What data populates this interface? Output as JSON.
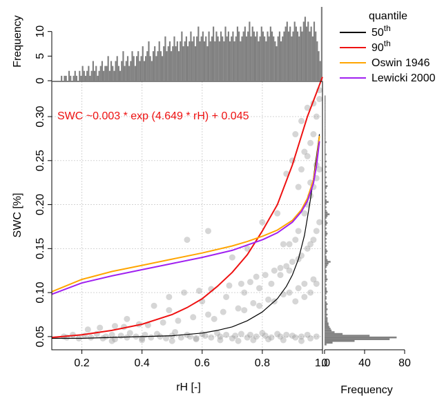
{
  "chart_data": {
    "type": "scatter",
    "xlabel": "rH [-]",
    "ylabel": "SWC [%]",
    "xlim": [
      0.1,
      1.0
    ],
    "ylim": [
      0.035,
      0.34
    ],
    "x_ticks": [
      0.2,
      0.4,
      0.6,
      0.8,
      1.0
    ],
    "x_tick_labels": [
      "0.2",
      "0.4",
      "0.6",
      "0.8",
      "1.0"
    ],
    "y_ticks": [
      0.05,
      0.1,
      0.15,
      0.2,
      0.25,
      0.3
    ],
    "y_tick_labels": [
      "0.05",
      "0.10",
      "0.15",
      "0.20",
      "0.25",
      "0.30"
    ],
    "grid": true,
    "annotation": "SWC ~0.003 * exp (4.649 * rH) + 0.045",
    "annotation_color": "#ee1111",
    "legend": {
      "title": "quantile",
      "placement": "top-right",
      "entries": [
        {
          "base": "50",
          "sup": "th",
          "color": "#000000"
        },
        {
          "base": "90",
          "sup": "th",
          "color": "#ee1111"
        },
        {
          "base": "Oswin 1946",
          "sup": "",
          "color": "#ffa500"
        },
        {
          "base": "Lewicki 2000",
          "sup": "",
          "color": "#a020f0"
        }
      ]
    },
    "series": [
      {
        "name": "50th",
        "color": "#000000",
        "x": [
          0.1,
          0.2,
          0.3,
          0.4,
          0.5,
          0.6,
          0.65,
          0.7,
          0.75,
          0.8,
          0.85,
          0.88,
          0.9,
          0.92,
          0.94,
          0.95,
          0.96,
          0.97,
          0.98,
          0.99
        ],
        "y": [
          0.048,
          0.048,
          0.049,
          0.05,
          0.051,
          0.054,
          0.057,
          0.061,
          0.068,
          0.078,
          0.093,
          0.107,
          0.12,
          0.138,
          0.165,
          0.185,
          0.206,
          0.23,
          0.255,
          0.28
        ]
      },
      {
        "name": "90th",
        "color": "#ee1111",
        "x": [
          0.1,
          0.2,
          0.3,
          0.4,
          0.5,
          0.55,
          0.6,
          0.65,
          0.7,
          0.75,
          0.8,
          0.85,
          0.9,
          0.95,
          0.98,
          1.0
        ],
        "y": [
          0.049,
          0.052,
          0.057,
          0.064,
          0.075,
          0.083,
          0.093,
          0.107,
          0.123,
          0.143,
          0.17,
          0.2,
          0.245,
          0.3,
          0.327,
          0.345
        ]
      },
      {
        "name": "Oswin 1946",
        "color": "#ffa500",
        "x": [
          0.1,
          0.2,
          0.3,
          0.4,
          0.5,
          0.6,
          0.7,
          0.75,
          0.8,
          0.85,
          0.9,
          0.93,
          0.95,
          0.97,
          0.98,
          0.99
        ],
        "y": [
          0.101,
          0.115,
          0.124,
          0.131,
          0.138,
          0.145,
          0.153,
          0.158,
          0.164,
          0.171,
          0.182,
          0.194,
          0.207,
          0.228,
          0.248,
          0.278
        ]
      },
      {
        "name": "Lewicki 2000",
        "color": "#a020f0",
        "x": [
          0.1,
          0.2,
          0.3,
          0.4,
          0.5,
          0.6,
          0.7,
          0.75,
          0.8,
          0.85,
          0.9,
          0.93,
          0.95,
          0.97,
          0.98,
          0.99
        ],
        "y": [
          0.098,
          0.111,
          0.119,
          0.126,
          0.133,
          0.14,
          0.148,
          0.154,
          0.16,
          0.168,
          0.18,
          0.192,
          0.204,
          0.224,
          0.244,
          0.272
        ]
      }
    ],
    "scatter_points": {
      "color": "#999999",
      "x": [
        0.14,
        0.15,
        0.17,
        0.19,
        0.21,
        0.23,
        0.25,
        0.27,
        0.28,
        0.3,
        0.31,
        0.33,
        0.35,
        0.36,
        0.38,
        0.4,
        0.41,
        0.43,
        0.45,
        0.46,
        0.48,
        0.5,
        0.51,
        0.53,
        0.55,
        0.56,
        0.58,
        0.6,
        0.61,
        0.63,
        0.65,
        0.66,
        0.68,
        0.7,
        0.71,
        0.73,
        0.75,
        0.76,
        0.78,
        0.8,
        0.81,
        0.83,
        0.85,
        0.86,
        0.88,
        0.9,
        0.91,
        0.93,
        0.95,
        0.96,
        0.98,
        0.22,
        0.26,
        0.31,
        0.34,
        0.39,
        0.42,
        0.47,
        0.52,
        0.57,
        0.62,
        0.64,
        0.67,
        0.72,
        0.74,
        0.77,
        0.79,
        0.82,
        0.84,
        0.87,
        0.89,
        0.92,
        0.94,
        0.97,
        0.35,
        0.44,
        0.49,
        0.54,
        0.59,
        0.63,
        0.69,
        0.73,
        0.76,
        0.78,
        0.81,
        0.84,
        0.86,
        0.88,
        0.9,
        0.92,
        0.93,
        0.95,
        0.96,
        0.97,
        0.98,
        0.99,
        0.55,
        0.62,
        0.7,
        0.75,
        0.8,
        0.85,
        0.87,
        0.89,
        0.91,
        0.92,
        0.94,
        0.95,
        0.96,
        0.97,
        0.98,
        0.99,
        0.88,
        0.9,
        0.92,
        0.93,
        0.94,
        0.95,
        0.96,
        0.97,
        0.98,
        0.99,
        0.91,
        0.93,
        0.95,
        0.97,
        0.99,
        0.96,
        0.98,
        0.49,
        0.6,
        0.68,
        0.74,
        0.79,
        0.83,
        0.86,
        0.89,
        0.91,
        0.94,
        0.96,
        0.98,
        0.3,
        0.4,
        0.5,
        0.58,
        0.66,
        0.72,
        0.77,
        0.82,
        0.87,
        0.93
      ],
      "y": [
        0.05,
        0.049,
        0.052,
        0.048,
        0.051,
        0.049,
        0.053,
        0.048,
        0.05,
        0.052,
        0.047,
        0.051,
        0.049,
        0.054,
        0.05,
        0.048,
        0.052,
        0.049,
        0.053,
        0.05,
        0.048,
        0.051,
        0.055,
        0.049,
        0.052,
        0.05,
        0.048,
        0.053,
        0.051,
        0.049,
        0.054,
        0.05,
        0.052,
        0.048,
        0.051,
        0.053,
        0.049,
        0.052,
        0.05,
        0.054,
        0.051,
        0.049,
        0.053,
        0.05,
        0.052,
        0.051,
        0.049,
        0.05,
        0.052,
        0.048,
        0.05,
        0.058,
        0.06,
        0.062,
        0.061,
        0.064,
        0.063,
        0.066,
        0.068,
        0.072,
        0.075,
        0.07,
        0.078,
        0.082,
        0.08,
        0.088,
        0.085,
        0.092,
        0.09,
        0.098,
        0.1,
        0.105,
        0.11,
        0.115,
        0.07,
        0.085,
        0.095,
        0.1,
        0.102,
        0.104,
        0.108,
        0.11,
        0.112,
        0.118,
        0.12,
        0.125,
        0.128,
        0.13,
        0.135,
        0.138,
        0.142,
        0.15,
        0.155,
        0.16,
        0.17,
        0.18,
        0.16,
        0.17,
        0.14,
        0.15,
        0.18,
        0.19,
        0.155,
        0.155,
        0.16,
        0.17,
        0.19,
        0.2,
        0.21,
        0.22,
        0.23,
        0.24,
        0.235,
        0.25,
        0.22,
        0.24,
        0.26,
        0.255,
        0.27,
        0.28,
        0.3,
        0.32,
        0.28,
        0.295,
        0.31,
        0.315,
        0.33,
        0.225,
        0.245,
        0.08,
        0.09,
        0.095,
        0.1,
        0.105,
        0.11,
        0.12,
        0.125,
        0.09,
        0.095,
        0.1,
        0.11,
        0.045,
        0.046,
        0.045,
        0.047,
        0.046,
        0.045,
        0.046,
        0.047,
        0.046,
        0.045
      ]
    },
    "top_histogram": {
      "ylabel": "Frequency",
      "y_ticks": [
        0,
        5,
        10
      ],
      "y_tick_labels": [
        "0",
        "5",
        "10"
      ],
      "ylim": [
        0,
        15
      ],
      "color": "#808080",
      "bins_from": 0.13,
      "bin_width": 0.005,
      "counts": [
        1,
        0,
        1,
        1,
        0,
        2,
        1,
        0,
        1,
        2,
        1,
        0,
        2,
        1,
        3,
        2,
        1,
        2,
        3,
        1,
        2,
        4,
        2,
        3,
        1,
        2,
        3,
        4,
        2,
        3,
        3,
        5,
        2,
        4,
        3,
        2,
        4,
        5,
        3,
        2,
        4,
        6,
        3,
        4,
        5,
        3,
        4,
        6,
        5,
        3,
        5,
        6,
        4,
        5,
        7,
        4,
        5,
        6,
        8,
        5,
        4,
        6,
        7,
        5,
        6,
        8,
        6,
        5,
        7,
        9,
        6,
        7,
        8,
        6,
        7,
        9,
        7,
        8,
        6,
        8,
        10,
        7,
        8,
        9,
        7,
        8,
        10,
        8,
        9,
        7,
        9,
        11,
        8,
        9,
        10,
        8,
        9,
        7,
        10,
        8,
        9,
        11,
        8,
        10,
        9,
        8,
        10,
        9,
        8,
        11,
        9,
        10,
        8,
        9,
        10,
        8,
        9,
        11,
        10,
        8,
        9,
        10,
        11,
        9,
        10,
        12,
        9,
        11,
        10,
        9,
        10,
        8,
        9,
        11,
        10,
        9,
        8,
        10,
        9,
        11,
        10,
        9,
        8,
        7,
        9,
        10,
        8,
        9,
        10,
        11,
        12,
        10,
        11,
        9,
        10,
        12,
        11,
        10,
        9,
        11,
        10,
        12,
        13,
        11,
        12,
        10,
        11,
        9,
        12,
        10,
        8,
        6,
        4,
        15
      ]
    },
    "right_histogram": {
      "xlabel": "Frequency",
      "x_ticks": [
        0,
        40,
        80
      ],
      "x_tick_labels": [
        "0",
        "40",
        "80"
      ],
      "xlim": [
        0,
        80
      ],
      "color": "#808080",
      "bins_from": 0.04,
      "bin_width": 0.002,
      "counts": [
        2,
        8,
        30,
        65,
        72,
        45,
        18,
        10,
        7,
        6,
        5,
        4,
        4,
        3,
        3,
        3,
        2,
        3,
        2,
        2,
        3,
        2,
        2,
        3,
        2,
        1,
        2,
        2,
        1,
        2,
        3,
        2,
        2,
        1,
        2,
        1,
        2,
        3,
        2,
        2,
        1,
        2,
        2,
        1,
        2,
        3,
        4,
        6,
        3,
        2,
        2,
        1,
        2,
        3,
        2,
        1,
        2,
        1,
        2,
        1,
        2,
        1,
        2,
        3,
        2,
        1,
        2,
        1,
        2,
        3,
        2,
        1,
        2,
        3,
        5,
        3,
        2,
        1,
        2,
        1,
        2,
        4,
        2,
        1,
        2,
        1,
        2,
        1,
        1,
        2,
        3,
        1,
        2,
        1,
        1,
        2,
        1,
        1,
        2,
        1,
        1,
        2,
        1,
        1,
        2,
        1,
        1,
        1,
        2,
        1,
        1,
        1,
        1,
        1,
        1,
        2,
        1,
        1,
        1,
        1,
        1,
        1,
        1,
        1,
        1,
        1,
        1,
        1,
        1,
        1,
        1,
        1,
        1,
        1,
        1,
        1,
        1,
        1,
        1,
        1,
        1,
        1
      ]
    }
  }
}
